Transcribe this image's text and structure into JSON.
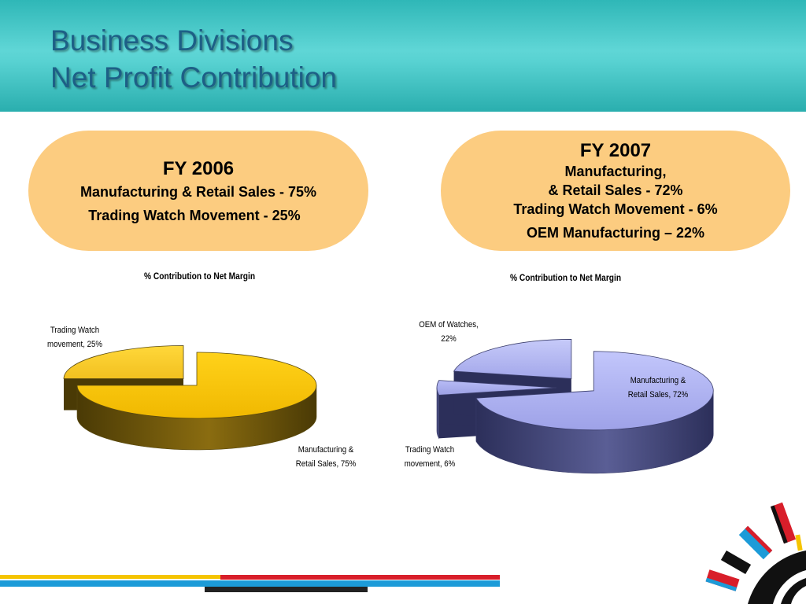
{
  "header": {
    "title_line1": "Business Divisions",
    "title_line2": "Net Profit Contribution"
  },
  "fy2006_box": {
    "heading": "FY 2006",
    "line1": "Manufacturing & Retail Sales - 75%",
    "line2": "Trading Watch Movement  - 25%"
  },
  "fy2007_box": {
    "heading": "FY 2007",
    "line1": "Manufacturing,",
    "line2": "& Retail Sales - 72%",
    "line3": "Trading Watch Movement  - 6%",
    "line4": "OEM Manufacturing – 22%"
  },
  "chart_data": [
    {
      "type": "pie",
      "title": "% Contribution to Net Margin",
      "categories": [
        "Manufacturing & Retail Sales",
        "Trading Watch movement"
      ],
      "values": [
        75,
        25
      ],
      "labels": [
        {
          "line1": "Manufacturing &",
          "line2": "Retail Sales, 75%"
        },
        {
          "line1": "Trading Watch",
          "line2": "movement, 25%"
        }
      ],
      "colors": [
        "#f7c610",
        "#e8bc1e"
      ],
      "legend": "none"
    },
    {
      "type": "pie",
      "title": "% Contribution to Net Margin",
      "categories": [
        "Manufacturing & Retail Sales",
        "Trading Watch movement",
        "OEM of Watches"
      ],
      "values": [
        72,
        6,
        22
      ],
      "labels": [
        {
          "line1": "Manufacturing &",
          "line2": "Retail Sales, 72%"
        },
        {
          "line1": "Trading Watch",
          "line2": "movement, 6%"
        },
        {
          "line1": "OEM of Watches,",
          "line2": "22%"
        }
      ],
      "colors": [
        "#aeb2f2",
        "#9fa3e6",
        "#b4b8f4"
      ],
      "legend": "none"
    }
  ],
  "colors": {
    "header_teal": "#4fcfcf",
    "title_blue": "#1d5f86",
    "pill_orange": "#fccc80",
    "stripe_yellow": "#f5c400",
    "stripe_red": "#d81e2a",
    "stripe_blue": "#1c9bd8",
    "stripe_dark": "#222222"
  }
}
